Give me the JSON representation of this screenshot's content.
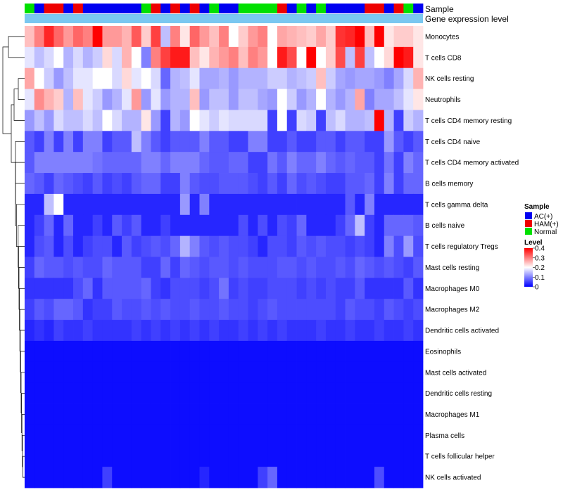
{
  "chart_data": {
    "type": "heatmap",
    "title": "",
    "annotation_labels": {
      "sample": "Sample",
      "expression": "Gene expression level"
    },
    "sample_groups": [
      "G",
      "B",
      "R",
      "R",
      "B",
      "R",
      "B",
      "B",
      "B",
      "B",
      "B",
      "B",
      "G",
      "R",
      "B",
      "R",
      "B",
      "R",
      "B",
      "G",
      "B",
      "B",
      "G",
      "G",
      "G",
      "G",
      "R",
      "B",
      "G",
      "B",
      "G",
      "B",
      "B",
      "B",
      "B",
      "R",
      "R",
      "B",
      "R",
      "G",
      "B"
    ],
    "group_colors": {
      "B": "#0000f0",
      "R": "#ee0000",
      "G": "#00e000"
    },
    "expression_bar_color": "#7ac7f0",
    "rows": [
      {
        "name": "Monocytes",
        "values": [
          0.25,
          0.3,
          0.37,
          0.32,
          0.28,
          0.32,
          0.3,
          0.4,
          0.28,
          0.28,
          0.26,
          0.33,
          0.24,
          0.35,
          0.15,
          0.3,
          0.22,
          0.32,
          0.28,
          0.25,
          0.3,
          0.2,
          0.24,
          0.28,
          0.3,
          0.2,
          0.27,
          0.26,
          0.25,
          0.24,
          0.27,
          0.24,
          0.36,
          0.37,
          0.42,
          0.25,
          0.4,
          0.22,
          0.24,
          0.24,
          0.22
        ]
      },
      {
        "name": "T cells CD8",
        "values": [
          0.18,
          0.15,
          0.17,
          0.2,
          0.14,
          0.17,
          0.14,
          0.16,
          0.23,
          0.17,
          0.26,
          0.2,
          0.1,
          0.3,
          0.35,
          0.38,
          0.38,
          0.25,
          0.22,
          0.26,
          0.28,
          0.3,
          0.25,
          0.3,
          0.28,
          0.2,
          0.38,
          0.34,
          0.2,
          0.4,
          0.2,
          0.24,
          0.34,
          0.15,
          0.35,
          0.15,
          0.2,
          0.23,
          0.4,
          0.38,
          0.22
        ]
      },
      {
        "name": "NK cells resting",
        "values": [
          0.27,
          0.2,
          0.16,
          0.12,
          0.15,
          0.18,
          0.18,
          0.2,
          0.2,
          0.17,
          0.23,
          0.18,
          0.2,
          0.17,
          0.08,
          0.14,
          0.15,
          0.18,
          0.13,
          0.13,
          0.14,
          0.12,
          0.14,
          0.14,
          0.14,
          0.16,
          0.16,
          0.14,
          0.15,
          0.16,
          0.25,
          0.16,
          0.13,
          0.12,
          0.13,
          0.13,
          0.12,
          0.1,
          0.13,
          0.17,
          0.26
        ]
      },
      {
        "name": "Neutrophils",
        "values": [
          0.18,
          0.29,
          0.26,
          0.24,
          0.14,
          0.25,
          0.18,
          0.16,
          0.12,
          0.14,
          0.18,
          0.28,
          0.12,
          0.18,
          0.12,
          0.14,
          0.14,
          0.25,
          0.12,
          0.15,
          0.15,
          0.12,
          0.15,
          0.15,
          0.13,
          0.12,
          0.2,
          0.16,
          0.12,
          0.14,
          0.2,
          0.14,
          0.12,
          0.14,
          0.27,
          0.1,
          0.13,
          0.13,
          0.15,
          0.18,
          0.22
        ]
      },
      {
        "name": "T cells CD4 memory resting",
        "values": [
          0.12,
          0.15,
          0.12,
          0.17,
          0.15,
          0.15,
          0.17,
          0.15,
          0.2,
          0.17,
          0.14,
          0.14,
          0.22,
          0.12,
          0.05,
          0.14,
          0.12,
          0.2,
          0.18,
          0.16,
          0.18,
          0.17,
          0.17,
          0.17,
          0.17,
          0.05,
          0.2,
          0.05,
          0.17,
          0.16,
          0.05,
          0.15,
          0.17,
          0.14,
          0.14,
          0.15,
          0.4,
          0.14,
          0.05,
          0.16,
          0.14
        ]
      },
      {
        "name": "T cells CD4 naive",
        "values": [
          0.07,
          0.05,
          0.1,
          0.05,
          0.1,
          0.05,
          0.1,
          0.1,
          0.05,
          0.07,
          0.07,
          0.15,
          0.1,
          0.07,
          0.05,
          0.07,
          0.07,
          0.07,
          0.1,
          0.07,
          0.07,
          0.05,
          0.05,
          0.1,
          0.1,
          0.05,
          0.05,
          0.07,
          0.05,
          0.05,
          0.07,
          0.07,
          0.05,
          0.07,
          0.07,
          0.05,
          0.05,
          0.12,
          0.07,
          0.05,
          0.07
        ]
      },
      {
        "name": "T cells CD4 memory activated",
        "values": [
          0.07,
          0.1,
          0.1,
          0.1,
          0.1,
          0.1,
          0.1,
          0.09,
          0.08,
          0.08,
          0.08,
          0.08,
          0.1,
          0.1,
          0.08,
          0.1,
          0.1,
          0.1,
          0.08,
          0.07,
          0.07,
          0.08,
          0.08,
          0.05,
          0.05,
          0.09,
          0.07,
          0.1,
          0.08,
          0.08,
          0.1,
          0.08,
          0.07,
          0.08,
          0.07,
          0.07,
          0.05,
          0.09,
          0.05,
          0.1,
          0.08
        ]
      },
      {
        "name": "B cells memory",
        "values": [
          0.08,
          0.07,
          0.05,
          0.08,
          0.07,
          0.06,
          0.05,
          0.07,
          0.05,
          0.06,
          0.05,
          0.07,
          0.08,
          0.08,
          0.05,
          0.05,
          0.1,
          0.07,
          0.06,
          0.06,
          0.07,
          0.07,
          0.07,
          0.06,
          0.05,
          0.07,
          0.05,
          0.08,
          0.06,
          0.07,
          0.06,
          0.05,
          0.05,
          0.07,
          0.07,
          0.08,
          0.05,
          0.1,
          0.05,
          0.08,
          0.08
        ]
      },
      {
        "name": "T cells gamma delta",
        "values": [
          0.03,
          0.03,
          0.15,
          0.2,
          0.03,
          0.03,
          0.03,
          0.03,
          0.03,
          0.03,
          0.03,
          0.03,
          0.03,
          0.03,
          0.03,
          0.03,
          0.12,
          0.03,
          0.1,
          0.03,
          0.03,
          0.03,
          0.03,
          0.03,
          0.03,
          0.03,
          0.03,
          0.03,
          0.03,
          0.03,
          0.03,
          0.03,
          0.03,
          0.07,
          0.03,
          0.1,
          0.03,
          0.03,
          0.03,
          0.03,
          0.03
        ]
      },
      {
        "name": "B cells naive",
        "values": [
          0.03,
          0.05,
          0.08,
          0.03,
          0.08,
          0.03,
          0.03,
          0.05,
          0.03,
          0.07,
          0.05,
          0.07,
          0.03,
          0.03,
          0.05,
          0.03,
          0.03,
          0.03,
          0.03,
          0.03,
          0.03,
          0.03,
          0.06,
          0.03,
          0.06,
          0.03,
          0.06,
          0.05,
          0.08,
          0.03,
          0.03,
          0.03,
          0.05,
          0.08,
          0.15,
          0.05,
          0.03,
          0.08,
          0.08,
          0.08,
          0.07
        ]
      },
      {
        "name": "T cells regulatory  Tregs",
        "values": [
          0.03,
          0.06,
          0.07,
          0.03,
          0.06,
          0.03,
          0.05,
          0.06,
          0.06,
          0.03,
          0.07,
          0.05,
          0.06,
          0.07,
          0.06,
          0.08,
          0.14,
          0.1,
          0.07,
          0.06,
          0.07,
          0.06,
          0.06,
          0.05,
          0.03,
          0.06,
          0.06,
          0.05,
          0.07,
          0.06,
          0.07,
          0.06,
          0.06,
          0.05,
          0.06,
          0.05,
          0.03,
          0.1,
          0.06,
          0.12,
          0.06
        ]
      },
      {
        "name": "Mast cells resting",
        "values": [
          0.05,
          0.08,
          0.07,
          0.07,
          0.06,
          0.07,
          0.06,
          0.06,
          0.08,
          0.07,
          0.07,
          0.07,
          0.05,
          0.05,
          0.08,
          0.05,
          0.08,
          0.07,
          0.06,
          0.07,
          0.07,
          0.06,
          0.07,
          0.06,
          0.06,
          0.06,
          0.07,
          0.07,
          0.06,
          0.07,
          0.06,
          0.06,
          0.07,
          0.06,
          0.08,
          0.07,
          0.06,
          0.07,
          0.06,
          0.05,
          0.07
        ]
      },
      {
        "name": "Macrophages M0",
        "values": [
          0.04,
          0.04,
          0.04,
          0.04,
          0.04,
          0.06,
          0.08,
          0.04,
          0.07,
          0.07,
          0.07,
          0.07,
          0.08,
          0.05,
          0.04,
          0.06,
          0.06,
          0.06,
          0.05,
          0.06,
          0.09,
          0.05,
          0.06,
          0.05,
          0.05,
          0.06,
          0.06,
          0.06,
          0.05,
          0.06,
          0.05,
          0.06,
          0.05,
          0.05,
          0.07,
          0.04,
          0.04,
          0.04,
          0.04,
          0.07,
          0.04
        ]
      },
      {
        "name": "Macrophages M2",
        "values": [
          0.05,
          0.07,
          0.06,
          0.08,
          0.08,
          0.07,
          0.04,
          0.05,
          0.05,
          0.07,
          0.06,
          0.06,
          0.07,
          0.06,
          0.07,
          0.06,
          0.06,
          0.07,
          0.06,
          0.06,
          0.07,
          0.06,
          0.06,
          0.05,
          0.06,
          0.07,
          0.06,
          0.06,
          0.06,
          0.06,
          0.06,
          0.06,
          0.05,
          0.07,
          0.06,
          0.06,
          0.05,
          0.07,
          0.06,
          0.05,
          0.06
        ]
      },
      {
        "name": "Dendritic cells activated",
        "values": [
          0.03,
          0.04,
          0.03,
          0.05,
          0.04,
          0.04,
          0.05,
          0.04,
          0.04,
          0.04,
          0.04,
          0.05,
          0.04,
          0.05,
          0.04,
          0.05,
          0.04,
          0.05,
          0.04,
          0.05,
          0.04,
          0.04,
          0.05,
          0.04,
          0.05,
          0.04,
          0.05,
          0.04,
          0.04,
          0.04,
          0.05,
          0.04,
          0.04,
          0.05,
          0.04,
          0.04,
          0.05,
          0.04,
          0.04,
          0.05,
          0.04
        ]
      },
      {
        "name": "Eosinophils",
        "values": [
          0.01,
          0.01,
          0.01,
          0.01,
          0.01,
          0.01,
          0.01,
          0.01,
          0.01,
          0.01,
          0.01,
          0.01,
          0.01,
          0.01,
          0.01,
          0.01,
          0.01,
          0.01,
          0.01,
          0.01,
          0.01,
          0.01,
          0.01,
          0.01,
          0.01,
          0.01,
          0.01,
          0.01,
          0.01,
          0.01,
          0.01,
          0.01,
          0.01,
          0.01,
          0.01,
          0.01,
          0.01,
          0.01,
          0.01,
          0.01,
          0.01
        ]
      },
      {
        "name": "Mast cells activated",
        "values": [
          0.01,
          0.01,
          0.01,
          0.01,
          0.01,
          0.01,
          0.01,
          0.01,
          0.01,
          0.01,
          0.01,
          0.01,
          0.01,
          0.01,
          0.01,
          0.01,
          0.01,
          0.01,
          0.01,
          0.01,
          0.01,
          0.01,
          0.01,
          0.01,
          0.01,
          0.01,
          0.01,
          0.01,
          0.01,
          0.01,
          0.01,
          0.01,
          0.01,
          0.01,
          0.01,
          0.01,
          0.01,
          0.01,
          0.01,
          0.01,
          0.01
        ]
      },
      {
        "name": "Dendritic cells resting",
        "values": [
          0.01,
          0.01,
          0.01,
          0.01,
          0.01,
          0.01,
          0.01,
          0.01,
          0.01,
          0.01,
          0.01,
          0.01,
          0.01,
          0.01,
          0.01,
          0.01,
          0.01,
          0.01,
          0.01,
          0.01,
          0.01,
          0.01,
          0.01,
          0.01,
          0.01,
          0.01,
          0.01,
          0.01,
          0.01,
          0.01,
          0.01,
          0.01,
          0.01,
          0.01,
          0.01,
          0.01,
          0.01,
          0.01,
          0.01,
          0.01,
          0.01
        ]
      },
      {
        "name": "Macrophages M1",
        "values": [
          0.01,
          0.01,
          0.01,
          0.01,
          0.01,
          0.01,
          0.01,
          0.01,
          0.01,
          0.01,
          0.01,
          0.01,
          0.01,
          0.01,
          0.01,
          0.01,
          0.01,
          0.01,
          0.01,
          0.01,
          0.01,
          0.01,
          0.01,
          0.01,
          0.01,
          0.01,
          0.01,
          0.01,
          0.01,
          0.01,
          0.01,
          0.01,
          0.01,
          0.01,
          0.01,
          0.01,
          0.01,
          0.01,
          0.01,
          0.01,
          0.01
        ]
      },
      {
        "name": "Plasma cells",
        "values": [
          0.01,
          0.01,
          0.01,
          0.01,
          0.01,
          0.01,
          0.01,
          0.01,
          0.01,
          0.01,
          0.01,
          0.01,
          0.01,
          0.01,
          0.01,
          0.01,
          0.01,
          0.01,
          0.01,
          0.01,
          0.01,
          0.01,
          0.01,
          0.01,
          0.01,
          0.01,
          0.01,
          0.01,
          0.01,
          0.01,
          0.01,
          0.01,
          0.01,
          0.01,
          0.01,
          0.01,
          0.01,
          0.01,
          0.01,
          0.01,
          0.01
        ]
      },
      {
        "name": "T cells follicular helper",
        "values": [
          0.01,
          0.01,
          0.01,
          0.01,
          0.01,
          0.01,
          0.01,
          0.01,
          0.01,
          0.01,
          0.01,
          0.01,
          0.01,
          0.01,
          0.01,
          0.01,
          0.01,
          0.01,
          0.01,
          0.01,
          0.01,
          0.01,
          0.01,
          0.01,
          0.01,
          0.01,
          0.01,
          0.01,
          0.01,
          0.01,
          0.01,
          0.01,
          0.01,
          0.01,
          0.01,
          0.01,
          0.01,
          0.01,
          0.01,
          0.01,
          0.01
        ]
      },
      {
        "name": "NK cells activated",
        "values": [
          0.01,
          0.01,
          0.01,
          0.01,
          0.01,
          0.01,
          0.01,
          0.01,
          0.05,
          0.01,
          0.01,
          0.01,
          0.01,
          0.01,
          0.01,
          0.01,
          0.01,
          0.01,
          0.03,
          0.01,
          0.01,
          0.01,
          0.01,
          0.01,
          0.05,
          0.08,
          0.01,
          0.01,
          0.01,
          0.01,
          0.01,
          0.01,
          0.01,
          0.01,
          0.01,
          0.01,
          0.06,
          0.01,
          0.01,
          0.01,
          0.01
        ]
      }
    ],
    "color_scale": {
      "min": 0,
      "mid": 0.2,
      "max": 0.4,
      "low": "#0000ff",
      "midcolor": "#ffffff",
      "high": "#ff0000"
    },
    "legend": {
      "sample_title": "Sample",
      "sample_entries": [
        {
          "label": "AC(+)",
          "color": "#0000f0"
        },
        {
          "label": "HAM(+)",
          "color": "#ee0000"
        },
        {
          "label": "Normal",
          "color": "#00e000"
        }
      ],
      "level_title": "Level",
      "level_ticks": [
        "0.4",
        "0.3",
        "0.2",
        "0.1",
        "0"
      ]
    }
  }
}
